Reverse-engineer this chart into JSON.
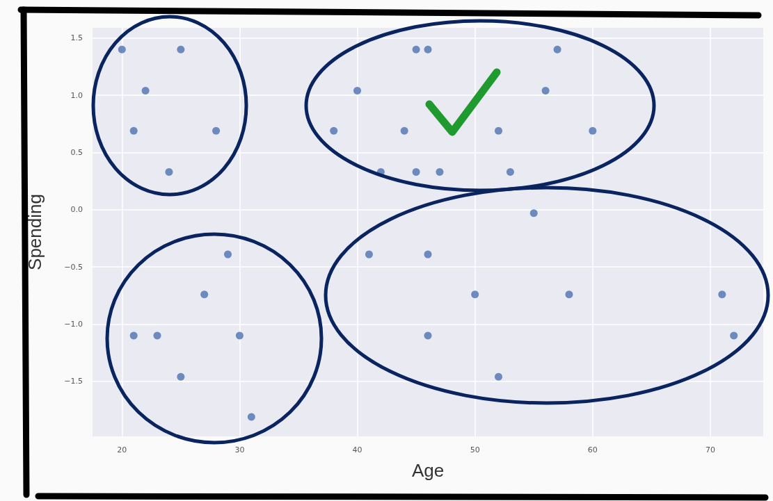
{
  "chart_data": {
    "type": "scatter",
    "xlabel": "Age",
    "ylabel": "Spending",
    "x": [
      20,
      25,
      22,
      21,
      28,
      24,
      45,
      46,
      57,
      40,
      56,
      38,
      44,
      52,
      60,
      42,
      45,
      47,
      53,
      55,
      29,
      27,
      21,
      23,
      30,
      25,
      31,
      41,
      46,
      50,
      58,
      71,
      46,
      72,
      52
    ],
    "values": [
      1.4,
      1.4,
      1.04,
      0.69,
      0.69,
      0.33,
      1.4,
      1.4,
      1.4,
      1.04,
      1.04,
      0.69,
      0.69,
      0.69,
      0.69,
      0.33,
      0.33,
      0.33,
      0.33,
      -0.03,
      -0.39,
      -0.74,
      -1.1,
      -1.1,
      -1.1,
      -1.46,
      -1.81,
      -0.39,
      -0.39,
      -0.74,
      -0.74,
      -0.74,
      -1.1,
      -1.1,
      -1.46
    ],
    "color": "#4c72b0",
    "xlim": [
      17.5,
      74.5
    ],
    "ylim": [
      -1.98,
      1.59
    ],
    "xticks": [
      20,
      30,
      40,
      50,
      60,
      70
    ],
    "yticks": [
      {
        "value": -1.5,
        "label": "−1.5"
      },
      {
        "value": -1,
        "label": "−1.0"
      },
      {
        "value": -0.5,
        "label": "−0.5"
      },
      {
        "value": 0,
        "label": "0.0"
      },
      {
        "value": 0.5,
        "label": "0.5"
      },
      {
        "value": 1,
        "label": "1.0"
      },
      {
        "value": 1.5,
        "label": "1.5"
      }
    ],
    "grid": true,
    "marker": "circle"
  }
}
